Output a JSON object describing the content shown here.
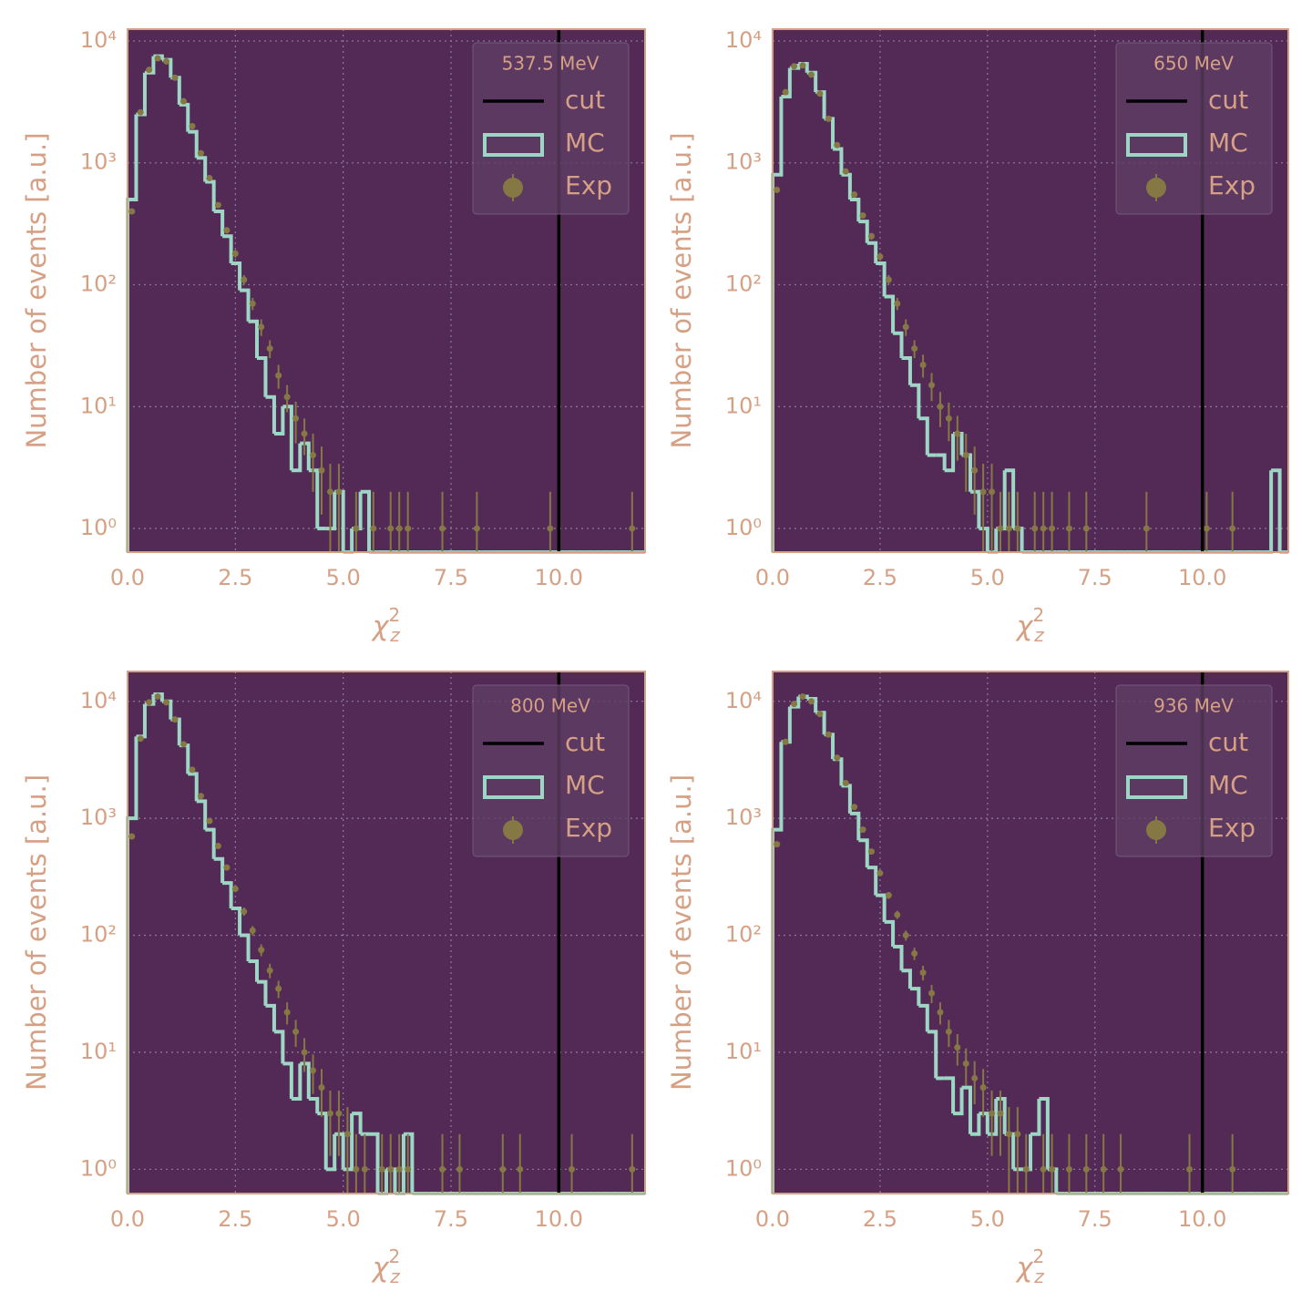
{
  "chart_data": [
    {
      "type": "histogram",
      "title": "537.5 MeV",
      "xlabel": {
        "symbol": "χ",
        "sup": "2",
        "sub": "z"
      },
      "ylabel": "Number of events [a.u.]",
      "log_y": true,
      "grid": true,
      "legend": "upper right",
      "xlim": [
        0,
        12
      ],
      "ylim": [
        0.64,
        12500
      ],
      "xticks": [
        {
          "value": 0,
          "label": "0.0"
        },
        2.5,
        {
          "value": 5,
          "label": "5.0"
        },
        7.5,
        {
          "value": 10,
          "label": "10.0"
        }
      ],
      "yticks": [
        {
          "value": 1,
          "label": "10⁰"
        },
        {
          "value": 10,
          "label": "10¹"
        },
        {
          "value": 100,
          "label": "10²"
        },
        {
          "value": 1000,
          "label": "10³"
        },
        {
          "value": 10000,
          "label": "10⁴"
        }
      ],
      "cut": {
        "name": "cut",
        "x": 10,
        "color": "#000000"
      },
      "bins": [
        0,
        0.2,
        0.4,
        0.6,
        0.8,
        1,
        1.2,
        1.4,
        1.6,
        1.8,
        2,
        2.2,
        2.4,
        2.6,
        2.8,
        3,
        3.2,
        3.4,
        3.6,
        3.8,
        4,
        4.2,
        4.4,
        4.6,
        4.8,
        5,
        5.2,
        5.4,
        5.6,
        5.8,
        6,
        6.2,
        6.4,
        6.6,
        6.8,
        7,
        7.2,
        7.4,
        7.6,
        7.8,
        8,
        8.2,
        8.4,
        8.6,
        8.8,
        9,
        9.2,
        9.4,
        9.6,
        9.8,
        10,
        10.2,
        10.4,
        10.6,
        10.8,
        11,
        11.2,
        11.4,
        11.6,
        11.8,
        12
      ],
      "series": [
        {
          "name": "MC",
          "color": "#9ed6c6",
          "values": [
            500,
            2500,
            5500,
            7500,
            7000,
            5000,
            3000,
            1800,
            1100,
            700,
            400,
            250,
            150,
            90,
            50,
            25,
            12,
            6,
            10,
            3,
            5,
            3,
            1,
            1,
            2,
            0,
            1,
            2,
            0,
            0,
            0,
            0,
            0,
            0,
            0,
            0,
            0,
            0,
            0,
            0,
            0,
            0,
            0,
            0,
            0,
            0,
            0,
            0,
            0,
            0,
            0,
            0,
            0,
            0,
            0,
            0,
            0,
            0,
            0,
            0
          ]
        },
        {
          "name": "Exp",
          "color": "#857845",
          "x": [
            0.1,
            0.3,
            0.5,
            0.7,
            0.9,
            1.1,
            1.3,
            1.5,
            1.7,
            1.9,
            2.1,
            2.3,
            2.5,
            2.7,
            2.9,
            3.1,
            3.3,
            3.5,
            3.7,
            3.9,
            4.1,
            4.3,
            4.5,
            4.7,
            4.9,
            5.3,
            5.7,
            6.1,
            6.3,
            6.5,
            7.3,
            8.1,
            9.8,
            11.7
          ],
          "values": [
            400,
            2600,
            5800,
            7200,
            6800,
            5000,
            3200,
            2000,
            1200,
            750,
            450,
            280,
            180,
            110,
            70,
            45,
            30,
            18,
            12,
            8,
            6,
            4,
            3,
            2,
            2,
            1,
            1,
            1,
            1,
            1,
            1,
            1,
            1,
            1
          ],
          "errors": [
            20,
            51,
            76,
            85,
            82,
            71,
            57,
            45,
            35,
            27,
            21,
            17,
            13,
            10,
            8,
            7,
            5,
            4,
            3,
            3,
            2,
            2,
            1.7,
            1.4,
            1.4,
            1,
            1,
            1,
            1,
            1,
            1,
            1,
            1,
            1
          ]
        }
      ]
    },
    {
      "type": "histogram",
      "title": "650 MeV",
      "xlabel": {
        "symbol": "χ",
        "sup": "2",
        "sub": "z"
      },
      "ylabel": "Number of events [a.u.]",
      "log_y": true,
      "grid": true,
      "legend": "upper right",
      "xlim": [
        0,
        12
      ],
      "ylim": [
        0.64,
        12500
      ],
      "xticks": [
        {
          "value": 0,
          "label": "0.0"
        },
        2.5,
        {
          "value": 5,
          "label": "5.0"
        },
        7.5,
        {
          "value": 10,
          "label": "10.0"
        }
      ],
      "yticks": [
        {
          "value": 1,
          "label": "10⁰"
        },
        {
          "value": 10,
          "label": "10¹"
        },
        {
          "value": 100,
          "label": "10²"
        },
        {
          "value": 1000,
          "label": "10³"
        },
        {
          "value": 10000,
          "label": "10⁴"
        }
      ],
      "cut": {
        "name": "cut",
        "x": 10,
        "color": "#000000"
      },
      "bins": [
        0,
        0.2,
        0.4,
        0.6,
        0.8,
        1,
        1.2,
        1.4,
        1.6,
        1.8,
        2,
        2.2,
        2.4,
        2.6,
        2.8,
        3,
        3.2,
        3.4,
        3.6,
        3.8,
        4,
        4.2,
        4.4,
        4.6,
        4.8,
        5,
        5.2,
        5.4,
        5.6,
        5.8,
        6,
        6.2,
        6.4,
        6.6,
        6.8,
        7,
        7.2,
        7.4,
        7.6,
        7.8,
        8,
        8.2,
        8.4,
        8.6,
        8.8,
        9,
        9.2,
        9.4,
        9.6,
        9.8,
        10,
        10.2,
        10.4,
        10.6,
        10.8,
        11,
        11.2,
        11.4,
        11.6,
        11.8,
        12
      ],
      "series": [
        {
          "name": "MC",
          "color": "#9ed6c6",
          "values": [
            800,
            3500,
            6000,
            6500,
            5500,
            3800,
            2300,
            1300,
            800,
            500,
            330,
            220,
            150,
            80,
            40,
            25,
            15,
            8,
            4,
            4,
            3,
            6,
            4,
            2,
            1,
            0,
            1,
            3,
            1,
            0,
            0,
            0,
            0,
            0,
            0,
            0,
            0,
            0,
            0,
            0,
            0,
            0,
            0,
            0,
            0,
            0,
            0,
            0,
            0,
            0,
            0,
            0,
            0,
            0,
            0,
            0,
            0,
            0,
            3,
            0
          ]
        },
        {
          "name": "Exp",
          "color": "#857845",
          "x": [
            0.1,
            0.3,
            0.5,
            0.7,
            0.9,
            1.1,
            1.3,
            1.5,
            1.7,
            1.9,
            2.1,
            2.3,
            2.5,
            2.7,
            2.9,
            3.1,
            3.3,
            3.5,
            3.7,
            3.9,
            4.1,
            4.3,
            4.5,
            4.7,
            4.9,
            5.1,
            5.3,
            5.5,
            5.7,
            6.1,
            6.3,
            6.5,
            6.9,
            7.3,
            8.7,
            10.1,
            10.7
          ],
          "values": [
            600,
            3800,
            6200,
            6300,
            5300,
            3700,
            2300,
            1400,
            850,
            550,
            370,
            250,
            170,
            110,
            70,
            45,
            30,
            22,
            15,
            10,
            8,
            6,
            4,
            3,
            2,
            2,
            1,
            1,
            1,
            1,
            1,
            1,
            1,
            1,
            1,
            1,
            1
          ],
          "errors": [
            24,
            62,
            79,
            79,
            73,
            61,
            48,
            37,
            29,
            23,
            19,
            16,
            13,
            10,
            8,
            7,
            5,
            4.7,
            3.9,
            3.2,
            2.8,
            2.4,
            2,
            1.7,
            1.4,
            1.4,
            1,
            1,
            1,
            1,
            1,
            1,
            1,
            1,
            1,
            1,
            1
          ]
        }
      ]
    },
    {
      "type": "histogram",
      "title": "800 MeV",
      "xlabel": {
        "symbol": "χ",
        "sup": "2",
        "sub": "z"
      },
      "ylabel": "Number of events [a.u.]",
      "log_y": true,
      "grid": true,
      "legend": "upper right",
      "xlim": [
        0,
        12
      ],
      "ylim": [
        0.62,
        18000
      ],
      "xticks": [
        {
          "value": 0,
          "label": "0.0"
        },
        2.5,
        {
          "value": 5,
          "label": "5.0"
        },
        7.5,
        {
          "value": 10,
          "label": "10.0"
        }
      ],
      "yticks": [
        {
          "value": 1,
          "label": "10⁰"
        },
        {
          "value": 10,
          "label": "10¹"
        },
        {
          "value": 100,
          "label": "10²"
        },
        {
          "value": 1000,
          "label": "10³"
        },
        {
          "value": 10000,
          "label": "10⁴"
        }
      ],
      "cut": {
        "name": "cut",
        "x": 10,
        "color": "#000000"
      },
      "bins": [
        0,
        0.2,
        0.4,
        0.6,
        0.8,
        1,
        1.2,
        1.4,
        1.6,
        1.8,
        2,
        2.2,
        2.4,
        2.6,
        2.8,
        3,
        3.2,
        3.4,
        3.6,
        3.8,
        4,
        4.2,
        4.4,
        4.6,
        4.8,
        5,
        5.2,
        5.4,
        5.6,
        5.8,
        6,
        6.2,
        6.4,
        6.6,
        6.8,
        7,
        7.2,
        7.4,
        7.6,
        7.8,
        8,
        8.2,
        8.4,
        8.6,
        8.8,
        9,
        9.2,
        9.4,
        9.6,
        9.8,
        10,
        10.2,
        10.4,
        10.6,
        10.8,
        11,
        11.2,
        11.4,
        11.6,
        11.8,
        12
      ],
      "series": [
        {
          "name": "MC",
          "color": "#9ed6c6",
          "values": [
            1000,
            5000,
            9500,
            11500,
            10000,
            7000,
            4200,
            2400,
            1400,
            800,
            450,
            280,
            170,
            100,
            60,
            40,
            25,
            15,
            8,
            4,
            8,
            4,
            3,
            1,
            2,
            1,
            3,
            2,
            2,
            0,
            1,
            0,
            2,
            0,
            0,
            0,
            0,
            0,
            0,
            0,
            0,
            0,
            0,
            0,
            0,
            0,
            0,
            0,
            0,
            0,
            0,
            0,
            0,
            0,
            0,
            0,
            0,
            0,
            0,
            0
          ]
        },
        {
          "name": "Exp",
          "color": "#857845",
          "x": [
            0.1,
            0.3,
            0.5,
            0.7,
            0.9,
            1.1,
            1.3,
            1.5,
            1.7,
            1.9,
            2.1,
            2.3,
            2.5,
            2.7,
            2.9,
            3.1,
            3.3,
            3.5,
            3.7,
            3.9,
            4.1,
            4.3,
            4.5,
            4.7,
            4.9,
            5.1,
            5.3,
            5.5,
            5.9,
            6.1,
            6.3,
            6.5,
            7.3,
            7.7,
            8.7,
            9.1,
            10.3,
            11.7
          ],
          "values": [
            700,
            4800,
            9800,
            11000,
            9800,
            7000,
            4300,
            2600,
            1550,
            950,
            580,
            380,
            250,
            160,
            110,
            75,
            50,
            35,
            22,
            15,
            10,
            7,
            5,
            3,
            3,
            2,
            1,
            1,
            1,
            1,
            1,
            1,
            1,
            1,
            1,
            1,
            1,
            1
          ],
          "errors": [
            26,
            69,
            99,
            105,
            99,
            84,
            66,
            51,
            39,
            31,
            24,
            19,
            16,
            13,
            10,
            8.7,
            7.1,
            5.9,
            4.7,
            3.9,
            3.2,
            2.6,
            2.2,
            1.7,
            1.7,
            1.4,
            1,
            1,
            1,
            1,
            1,
            1,
            1,
            1,
            1,
            1,
            1,
            1
          ]
        }
      ]
    },
    {
      "type": "histogram",
      "title": "936 MeV",
      "xlabel": {
        "symbol": "χ",
        "sup": "2",
        "sub": "z"
      },
      "ylabel": "Number of events [a.u.]",
      "log_y": true,
      "grid": true,
      "legend": "upper right",
      "xlim": [
        0,
        12
      ],
      "ylim": [
        0.62,
        18000
      ],
      "xticks": [
        {
          "value": 0,
          "label": "0.0"
        },
        2.5,
        {
          "value": 5,
          "label": "5.0"
        },
        7.5,
        {
          "value": 10,
          "label": "10.0"
        }
      ],
      "yticks": [
        {
          "value": 1,
          "label": "10⁰"
        },
        {
          "value": 10,
          "label": "10¹"
        },
        {
          "value": 100,
          "label": "10²"
        },
        {
          "value": 1000,
          "label": "10³"
        },
        {
          "value": 10000,
          "label": "10⁴"
        }
      ],
      "cut": {
        "name": "cut",
        "x": 10,
        "color": "#000000"
      },
      "bins": [
        0,
        0.2,
        0.4,
        0.6,
        0.8,
        1,
        1.2,
        1.4,
        1.6,
        1.8,
        2,
        2.2,
        2.4,
        2.6,
        2.8,
        3,
        3.2,
        3.4,
        3.6,
        3.8,
        4,
        4.2,
        4.4,
        4.6,
        4.8,
        5,
        5.2,
        5.4,
        5.6,
        5.8,
        6,
        6.2,
        6.4,
        6.6,
        6.8,
        7,
        7.2,
        7.4,
        7.6,
        7.8,
        8,
        8.2,
        8.4,
        8.6,
        8.8,
        9,
        9.2,
        9.4,
        9.6,
        9.8,
        10,
        10.2,
        10.4,
        10.6,
        10.8,
        11,
        11.2,
        11.4,
        11.6,
        11.8,
        12
      ],
      "series": [
        {
          "name": "MC",
          "color": "#9ed6c6",
          "values": [
            800,
            4500,
            9000,
            11000,
            10500,
            8000,
            5200,
            3200,
            1900,
            1100,
            650,
            380,
            220,
            130,
            80,
            50,
            35,
            25,
            15,
            6,
            6,
            3,
            5,
            2,
            3,
            2,
            4,
            2,
            1,
            1,
            2,
            4,
            1,
            0,
            0,
            0,
            0,
            0,
            0,
            0,
            0,
            0,
            0,
            0,
            0,
            0,
            0,
            0,
            0,
            0,
            0,
            0,
            0,
            0,
            0,
            0,
            0,
            0,
            0,
            0
          ]
        },
        {
          "name": "Exp",
          "color": "#857845",
          "x": [
            0.1,
            0.3,
            0.5,
            0.7,
            0.9,
            1.1,
            1.3,
            1.5,
            1.7,
            1.9,
            2.1,
            2.3,
            2.5,
            2.7,
            2.9,
            3.1,
            3.3,
            3.5,
            3.7,
            3.9,
            4.1,
            4.3,
            4.5,
            4.7,
            4.9,
            5.1,
            5.3,
            5.5,
            5.7,
            5.9,
            6.3,
            6.5,
            6.9,
            7.3,
            7.7,
            8.1,
            9.7,
            10.7
          ],
          "values": [
            600,
            4500,
            9500,
            11000,
            10000,
            7800,
            5200,
            3300,
            2000,
            1250,
            800,
            520,
            340,
            220,
            150,
            100,
            70,
            48,
            32,
            22,
            15,
            11,
            8,
            6,
            5,
            3,
            3,
            2,
            2,
            1,
            1,
            1,
            1,
            1,
            1,
            1,
            1,
            1
          ],
          "errors": [
            24,
            67,
            97,
            105,
            100,
            88,
            72,
            57,
            45,
            35,
            28,
            23,
            18,
            15,
            12,
            10,
            8.4,
            6.9,
            5.7,
            4.7,
            3.9,
            3.3,
            2.8,
            2.4,
            2.2,
            1.7,
            1.7,
            1.4,
            1.4,
            1,
            1,
            1,
            1,
            1,
            1,
            1,
            1,
            1
          ]
        }
      ]
    }
  ]
}
